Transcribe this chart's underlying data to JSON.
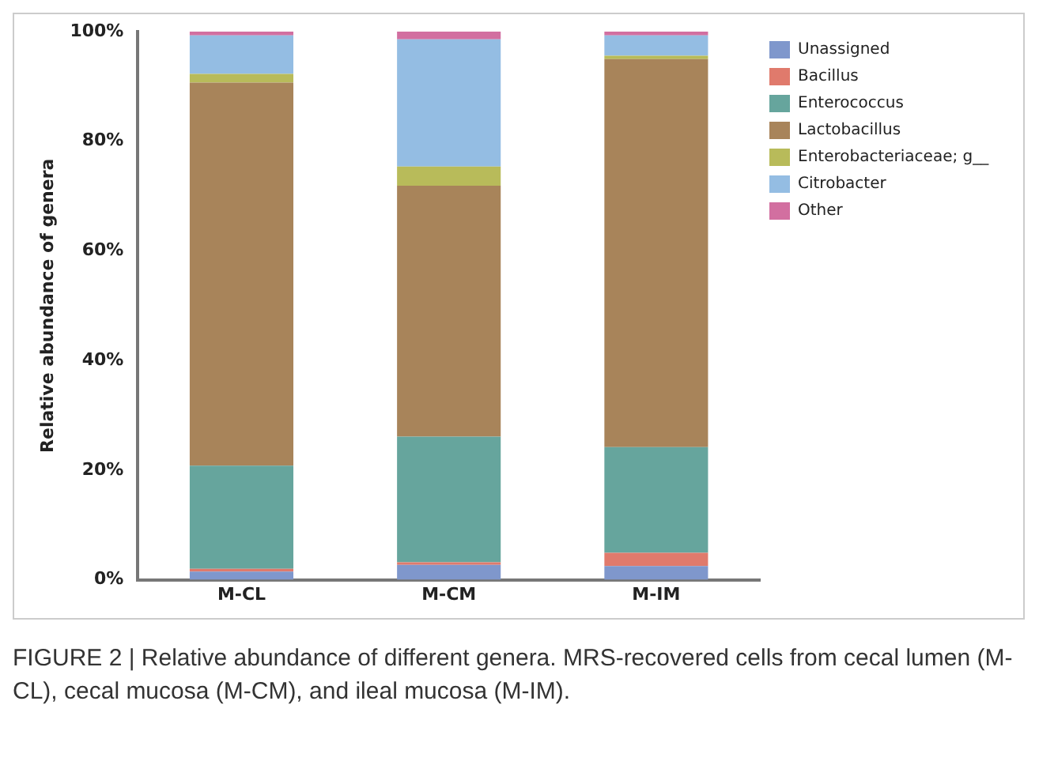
{
  "chart_data": {
    "type": "bar",
    "stacked": true,
    "ylabel": "Relative abundance of genera",
    "categories": [
      "M-CL",
      "M-CM",
      "M-IM"
    ],
    "series": [
      {
        "name": "Unassigned",
        "color": "#7f97cc",
        "values": [
          1.5,
          2.7,
          2.5
        ]
      },
      {
        "name": "Bacillus",
        "color": "#e07a6c",
        "values": [
          0.5,
          0.5,
          2.4
        ]
      },
      {
        "name": "Enterococcus",
        "color": "#66a59d",
        "values": [
          18.8,
          22.9,
          19.3
        ]
      },
      {
        "name": "Lactobacillus",
        "color": "#a8845a",
        "values": [
          69.9,
          45.8,
          70.8
        ]
      },
      {
        "name": "Enterobacteriaceae; g__",
        "color": "#b8bb5a",
        "values": [
          1.6,
          3.5,
          0.6
        ]
      },
      {
        "name": "Citrobacter",
        "color": "#94bde3",
        "values": [
          7.0,
          23.2,
          3.7
        ]
      },
      {
        "name": "Other",
        "color": "#d26fa0",
        "values": [
          0.7,
          1.4,
          0.7
        ]
      }
    ],
    "ylim": [
      0,
      100
    ],
    "yticks": [
      {
        "value": 0,
        "label": "0%"
      },
      {
        "value": 20,
        "label": "20%"
      },
      {
        "value": 40,
        "label": "40%"
      },
      {
        "value": 60,
        "label": "60%"
      },
      {
        "value": 80,
        "label": "80%"
      },
      {
        "value": 100,
        "label": "100%"
      }
    ],
    "grid": false,
    "legend": "top right",
    "annotations": [
      "FIGURE 2 | Relative abundance of different genera. MRS-recovered cells from cecal lumen (M-CL), cecal mucosa (M-CM), and ileal mucosa (M-IM)."
    ]
  }
}
